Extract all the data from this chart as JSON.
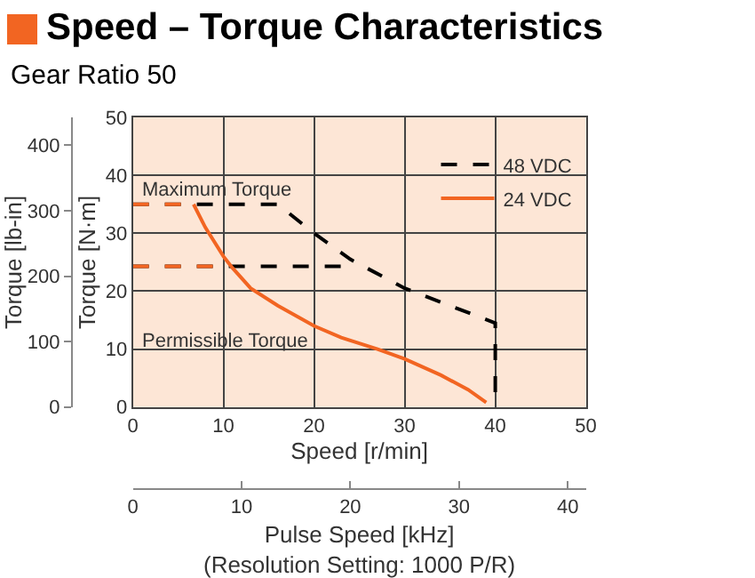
{
  "chart_data": {
    "type": "line",
    "title": "Speed – Torque Characteristics",
    "subtitle": "Gear Ratio 50",
    "xlabel": "Speed [r/min]",
    "ylabel": "Torque [N·m]",
    "y2label": "Torque [lb-in]",
    "x2label": "Pulse Speed [kHz]\n(Resolution Setting: 1000 P/R)",
    "xlim": [
      0,
      50
    ],
    "xticks": [
      0,
      10,
      20,
      30,
      40,
      50
    ],
    "ylim": [
      0,
      50
    ],
    "yticks": [
      0,
      10,
      20,
      30,
      40,
      50
    ],
    "y2lim": [
      0,
      442.5
    ],
    "y2ticks": [
      0,
      100,
      200,
      300,
      400
    ],
    "x2lim": [
      0,
      41.67
    ],
    "x2ticks": [
      0,
      10,
      20,
      30,
      40
    ],
    "grid": true,
    "legend": "top right",
    "marker": "none",
    "series": [
      {
        "name": "48 VDC",
        "color": "#000000",
        "line_style": "dashed",
        "x": [
          0,
          16,
          20,
          24,
          30,
          35,
          40,
          40
        ],
        "values": [
          35,
          35,
          30,
          25.5,
          20.5,
          17.5,
          14.5,
          0
        ]
      },
      {
        "color": "#000000",
        "line_style": "dashed",
        "x": [
          0,
          24
        ],
        "values": [
          24.3,
          24.3
        ]
      },
      {
        "color": "#f26522",
        "line_style": "dashed",
        "x": [
          0,
          6.7
        ],
        "values": [
          35,
          35
        ]
      },
      {
        "color": "#f26522",
        "line_style": "dashed",
        "x": [
          0,
          10.5
        ],
        "values": [
          24.3,
          24.3
        ]
      },
      {
        "name": "24 VDC",
        "color": "#f26522",
        "line_style": "solid",
        "x": [
          6.7,
          8,
          10,
          11,
          13,
          16,
          20,
          23,
          27,
          30,
          34,
          37,
          39
        ],
        "values": [
          35,
          31,
          26,
          24,
          20.5,
          17.5,
          14,
          12,
          10,
          8.3,
          5.5,
          3,
          0.8
        ]
      }
    ],
    "annotations": [
      "Maximum Torque",
      "Permissible Torque"
    ]
  }
}
